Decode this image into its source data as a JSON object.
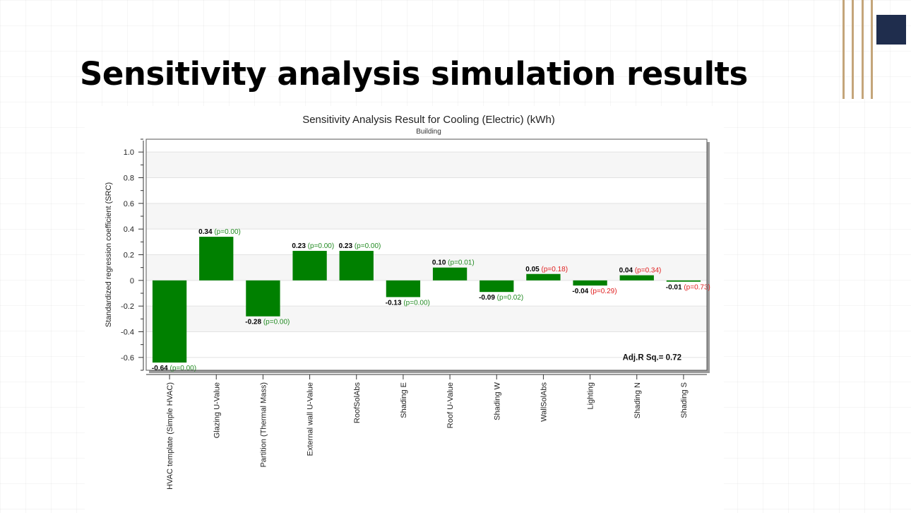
{
  "slide": {
    "title": "Sensitivity analysis simulation results"
  },
  "colors": {
    "bar": "#008000",
    "sig_label": "#228b22",
    "nonsig_label": "#e02020",
    "accent_gold": "#c4a57a",
    "accent_navy": "#1f2d4d"
  },
  "chart_data": {
    "type": "bar",
    "title": "Sensitivity Analysis Result for Cooling (Electric) (kWh)",
    "subtitle": "Building",
    "xlabel": "",
    "ylabel": "Standardized regression coefficient (SRC)",
    "ylim": [
      -0.7,
      1.1
    ],
    "yticks": [
      1.0,
      0.8,
      0.6,
      0.4,
      0.2,
      0,
      -0.2,
      -0.4,
      -0.6
    ],
    "ytick_labels": [
      "1.0",
      "0.8",
      "0.6",
      "0.4",
      "0.2",
      "0",
      "-0.2",
      "-0.4",
      "-0.6"
    ],
    "categories": [
      "HVAC template (Simple HVAC)",
      "Glazing U-Value",
      "Partition (Thermal Mass)",
      "External wall U-Value",
      "RoofSolAbs",
      "Shading E",
      "Roof U-Value",
      "Shading W",
      "WallSolAbs",
      "Lighting",
      "Shading N",
      "Shading S"
    ],
    "values": [
      -0.64,
      0.34,
      -0.28,
      0.23,
      0.23,
      -0.13,
      0.1,
      -0.09,
      0.05,
      -0.04,
      0.04,
      -0.01
    ],
    "value_labels": [
      "-0.64",
      "0.34",
      "-0.28",
      "0.23",
      "0.23",
      "-0.13",
      "0.10",
      "-0.09",
      "0.05",
      "-0.04",
      "0.04",
      "-0.01"
    ],
    "p_labels": [
      "(p=0.00)",
      "(p=0.00)",
      "(p=0.00)",
      "(p=0.00)",
      "(p=0.00)",
      "(p=0.00)",
      "(p=0.01)",
      "(p=0.02)",
      "(p=0.18)",
      "(p=0.29)",
      "(p=0.34)",
      "(p=0.73)"
    ],
    "significant": [
      true,
      true,
      true,
      true,
      true,
      true,
      true,
      true,
      false,
      false,
      false,
      false
    ],
    "annotation": "Adj.R Sq.= 0.72",
    "grid": true,
    "legend": "none"
  }
}
